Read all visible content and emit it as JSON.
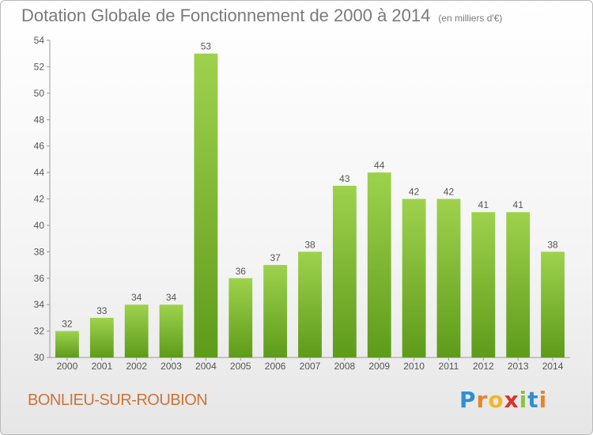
{
  "chart_data": {
    "type": "bar",
    "title": "Dotation Globale de Fonctionnement de 2000 à 2014",
    "unit_note": "(en milliers d'€)",
    "categories": [
      "2000",
      "2001",
      "2002",
      "2003",
      "2004",
      "2005",
      "2006",
      "2007",
      "2008",
      "2009",
      "2010",
      "2011",
      "2012",
      "2013",
      "2014"
    ],
    "values": [
      32,
      33,
      34,
      34,
      53,
      36,
      37,
      38,
      43,
      44,
      42,
      42,
      41,
      41,
      38
    ],
    "xlabel": "",
    "ylabel": "",
    "ylim": [
      30,
      54
    ],
    "yticks": [
      30,
      32,
      34,
      36,
      38,
      40,
      42,
      44,
      46,
      48,
      50,
      52,
      54
    ],
    "grid": false,
    "legend": "none",
    "bar_color": "#8cc63f",
    "bar_color_dark": "#5e9b1a"
  },
  "commune": "BONLIEU-SUR-ROUBION",
  "logo": {
    "letters": [
      "P",
      "r",
      "o",
      "x",
      "i",
      "t",
      "i"
    ]
  }
}
